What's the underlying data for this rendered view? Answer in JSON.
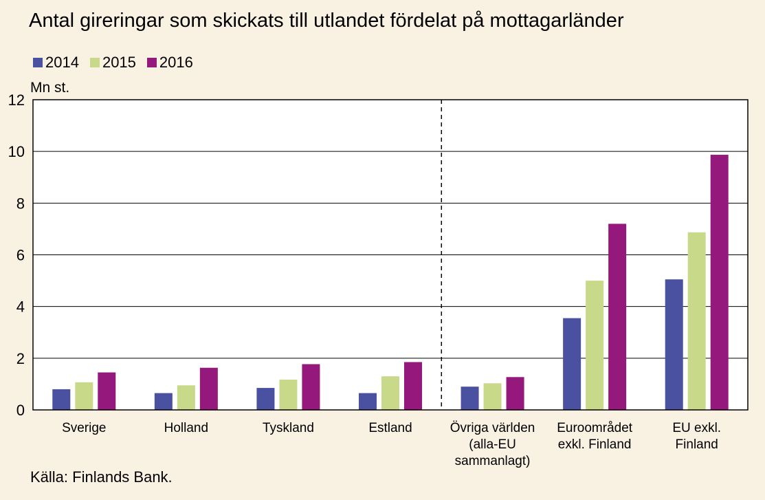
{
  "chart_data": {
    "type": "bar",
    "title": "Antal gireringar som skickats till utlandet fördelat på mottagarländer",
    "ylabel": "Mn st.",
    "ylim": [
      0,
      12
    ],
    "yticks": [
      0,
      2,
      4,
      6,
      8,
      10,
      12
    ],
    "grid": true,
    "legend_placement": "top-left",
    "categories": [
      [
        "Sverige"
      ],
      [
        "Holland"
      ],
      [
        "Tyskland"
      ],
      [
        "Estland"
      ],
      [
        "Övriga världen",
        "(alla-EU",
        "sammanlagt)"
      ],
      [
        "Euroområdet",
        "exkl. Finland"
      ],
      [
        "EU exkl.",
        "Finland"
      ]
    ],
    "series": [
      {
        "name": "2014",
        "color": "#4a51a0",
        "values": [
          0.8,
          0.65,
          0.85,
          0.65,
          0.9,
          3.55,
          5.05
        ]
      },
      {
        "name": "2015",
        "color": "#c9d98a",
        "values": [
          1.07,
          0.95,
          1.17,
          1.3,
          1.03,
          5.0,
          6.87
        ]
      },
      {
        "name": "2016",
        "color": "#95187d",
        "values": [
          1.45,
          1.63,
          1.77,
          1.85,
          1.27,
          7.2,
          9.87
        ]
      }
    ],
    "source": "Källa: Finlands Bank."
  }
}
